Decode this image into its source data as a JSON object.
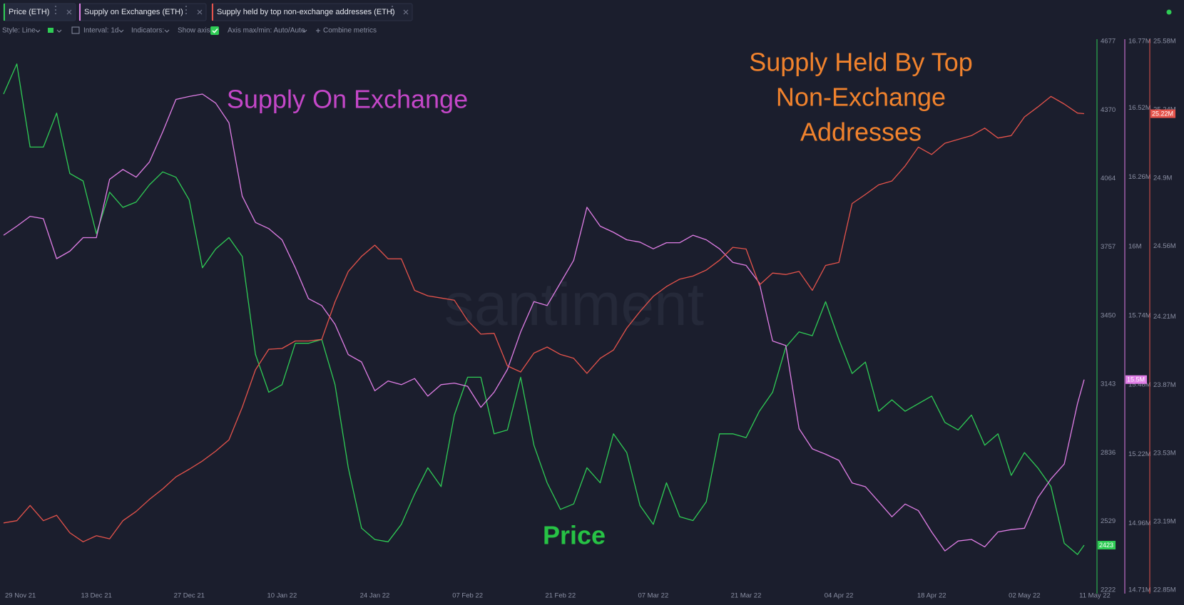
{
  "toolbar": {
    "style": "Style: Line",
    "interval": "Interval: 1d",
    "indicators": "Indicators:",
    "show_axis": "Show axis",
    "axis_minmax": "Axis max/min: Auto/Auto",
    "combine": "Combine metrics"
  },
  "chart_data": {
    "type": "line",
    "x": [
      "2021-11-29",
      "2021-12-01",
      "2021-12-03",
      "2021-12-05",
      "2021-12-07",
      "2021-12-09",
      "2021-12-11",
      "2021-12-13",
      "2021-12-15",
      "2021-12-17",
      "2021-12-19",
      "2021-12-21",
      "2021-12-23",
      "2021-12-25",
      "2021-12-27",
      "2021-12-29",
      "2021-12-31",
      "2022-01-02",
      "2022-01-04",
      "2022-01-06",
      "2022-01-08",
      "2022-01-10",
      "2022-01-12",
      "2022-01-14",
      "2022-01-16",
      "2022-01-18",
      "2022-01-20",
      "2022-01-22",
      "2022-01-24",
      "2022-01-26",
      "2022-01-28",
      "2022-01-30",
      "2022-02-01",
      "2022-02-03",
      "2022-02-05",
      "2022-02-07",
      "2022-02-09",
      "2022-02-11",
      "2022-02-13",
      "2022-02-15",
      "2022-02-17",
      "2022-02-19",
      "2022-02-21",
      "2022-02-23",
      "2022-02-25",
      "2022-02-27",
      "2022-03-01",
      "2022-03-03",
      "2022-03-05",
      "2022-03-07",
      "2022-03-09",
      "2022-03-11",
      "2022-03-13",
      "2022-03-15",
      "2022-03-17",
      "2022-03-19",
      "2022-03-21",
      "2022-03-23",
      "2022-03-25",
      "2022-03-27",
      "2022-03-29",
      "2022-03-31",
      "2022-04-02",
      "2022-04-04",
      "2022-04-06",
      "2022-04-08",
      "2022-04-10",
      "2022-04-12",
      "2022-04-14",
      "2022-04-16",
      "2022-04-18",
      "2022-04-20",
      "2022-04-22",
      "2022-04-24",
      "2022-04-26",
      "2022-04-28",
      "2022-04-30",
      "2022-05-02",
      "2022-05-04",
      "2022-05-06",
      "2022-05-08",
      "2022-05-10",
      "2022-05-11"
    ],
    "xlim": [
      "2021-11-29",
      "2022-05-11"
    ],
    "xticks": [
      {
        "value": "2021-11-29",
        "label": "29 Nov 21"
      },
      {
        "value": "2021-12-13",
        "label": "13 Dec 21"
      },
      {
        "value": "2021-12-27",
        "label": "27 Dec 21"
      },
      {
        "value": "2022-01-10",
        "label": "10 Jan 22"
      },
      {
        "value": "2022-01-24",
        "label": "24 Jan 22"
      },
      {
        "value": "2022-02-07",
        "label": "07 Feb 22"
      },
      {
        "value": "2022-02-21",
        "label": "21 Feb 22"
      },
      {
        "value": "2022-03-07",
        "label": "07 Mar 22"
      },
      {
        "value": "2022-03-21",
        "label": "21 Mar 22"
      },
      {
        "value": "2022-04-04",
        "label": "04 Apr 22"
      },
      {
        "value": "2022-04-18",
        "label": "18 Apr 22"
      },
      {
        "value": "2022-05-02",
        "label": "02 May 22"
      },
      {
        "value": "2022-05-11",
        "label": "11 May 22"
      }
    ],
    "series": [
      {
        "name": "Price (ETH)",
        "color": "#2fcc55",
        "axis": "y",
        "current_label": "2423",
        "values": [
          4441,
          4576,
          4204,
          4204,
          4356,
          4086,
          4052,
          3816,
          4002,
          3934,
          3958,
          4035,
          4093,
          4069,
          3968,
          3664,
          3748,
          3799,
          3715,
          3276,
          3107,
          3141,
          3326,
          3326,
          3343,
          3141,
          2769,
          2499,
          2448,
          2438,
          2516,
          2651,
          2769,
          2685,
          3005,
          3174,
          3174,
          2921,
          2938,
          3174,
          2870,
          2702,
          2583,
          2607,
          2769,
          2702,
          2921,
          2837,
          2600,
          2516,
          2702,
          2550,
          2533,
          2617,
          2921,
          2921,
          2904,
          3022,
          3107,
          3309,
          3377,
          3360,
          3512,
          3343,
          3191,
          3242,
          3022,
          3073,
          3022,
          3056,
          3090,
          2972,
          2938,
          3005,
          2870,
          2921,
          2735,
          2837,
          2769,
          2685,
          2431,
          2381,
          2423
        ]
      },
      {
        "name": "Supply on Exchanges (ETH)",
        "color": "#e07ee6",
        "axis": "y2",
        "current_label": "15.5M",
        "values": [
          16042000,
          16076000,
          16113000,
          16104000,
          15954000,
          15982000,
          16033000,
          16033000,
          16252000,
          16289000,
          16260000,
          16317000,
          16430000,
          16552000,
          16563000,
          16572000,
          16538000,
          16464000,
          16189000,
          16090000,
          16067000,
          16025000,
          15920000,
          15804000,
          15778000,
          15708000,
          15594000,
          15566000,
          15458000,
          15495000,
          15481000,
          15504000,
          15438000,
          15481000,
          15487000,
          15475000,
          15396000,
          15453000,
          15538000,
          15679000,
          15793000,
          15778000,
          15863000,
          15948000,
          16147000,
          16076000,
          16053000,
          16025000,
          16016000,
          15991000,
          16014000,
          16014000,
          16042000,
          16025000,
          15991000,
          15940000,
          15929000,
          15863000,
          15645000,
          15628000,
          15316000,
          15240000,
          15220000,
          15197000,
          15112000,
          15098000,
          15042000,
          14985000,
          15033000,
          15008000,
          14928000,
          14857000,
          14894000,
          14900000,
          14872000,
          14928000,
          14937000,
          14942000,
          15056000,
          15127000,
          15183000,
          15410000,
          15500000
        ]
      },
      {
        "name": "Supply held by top non-exchange addresses (ETH)",
        "color": "#e5534b",
        "axis": "y3",
        "current_label": "25.22M",
        "values": [
          23184000,
          23195000,
          23271000,
          23195000,
          23222000,
          23135000,
          23090000,
          23120000,
          23105000,
          23195000,
          23241000,
          23301000,
          23353000,
          23413000,
          23451000,
          23492000,
          23541000,
          23597000,
          23759000,
          23946000,
          24048000,
          24052000,
          24089000,
          24089000,
          24097000,
          24284000,
          24435000,
          24510000,
          24566000,
          24498000,
          24498000,
          24341000,
          24314000,
          24303000,
          24292000,
          24191000,
          24123000,
          24127000,
          23965000,
          23935000,
          24029000,
          24059000,
          24022000,
          24003000,
          23928000,
          24003000,
          24044000,
          24153000,
          24236000,
          24311000,
          24360000,
          24397000,
          24412000,
          24442000,
          24491000,
          24555000,
          24547000,
          24367000,
          24427000,
          24420000,
          24435000,
          24341000,
          24465000,
          24480000,
          24773000,
          24818000,
          24866000,
          24885000,
          24960000,
          25054000,
          25017000,
          25073000,
          25092000,
          25111000,
          25148000,
          25099000,
          25111000,
          25204000,
          25253000,
          25306000,
          25268000,
          25223000,
          25220000
        ]
      }
    ],
    "ylim": [
      2222,
      4677
    ],
    "yticks": [
      2222,
      2529,
      2836,
      3143,
      3450,
      3757,
      4064,
      4370,
      4677
    ],
    "y2lim": [
      14710000,
      16770000
    ],
    "y2ticks": [
      {
        "value": 14710000,
        "label": "14.71M"
      },
      {
        "value": 14960000,
        "label": "14.96M"
      },
      {
        "value": 15220000,
        "label": "15.22M"
      },
      {
        "value": 15480000,
        "label": "15.48M"
      },
      {
        "value": 15740000,
        "label": "15.74M"
      },
      {
        "value": 16000000,
        "label": "16M"
      },
      {
        "value": 16260000,
        "label": "16.26M"
      },
      {
        "value": 16520000,
        "label": "16.52M"
      },
      {
        "value": 16770000,
        "label": "16.77M"
      }
    ],
    "y3lim": [
      22850000,
      25580000
    ],
    "y3ticks": [
      {
        "value": 22850000,
        "label": "22.85M"
      },
      {
        "value": 23190000,
        "label": "23.19M"
      },
      {
        "value": 23530000,
        "label": "23.53M"
      },
      {
        "value": 23870000,
        "label": "23.87M"
      },
      {
        "value": 24210000,
        "label": "24.21M"
      },
      {
        "value": 24560000,
        "label": "24.56M"
      },
      {
        "value": 24900000,
        "label": "24.9M"
      },
      {
        "value": 25240000,
        "label": "25.24M"
      },
      {
        "value": 25580000,
        "label": "25.58M"
      }
    ],
    "grid": false,
    "watermark": "santiment",
    "annotations": [
      {
        "lines": [
          "Supply On Exchange"
        ],
        "color": "#c447c8",
        "bold": false
      },
      {
        "lines": [
          "Supply Held By Top",
          "Non-Exchange",
          "Addresses"
        ],
        "color": "#f0822d",
        "bold": false
      },
      {
        "lines": [
          "Price"
        ],
        "color": "#27c245",
        "bold": true
      }
    ]
  }
}
